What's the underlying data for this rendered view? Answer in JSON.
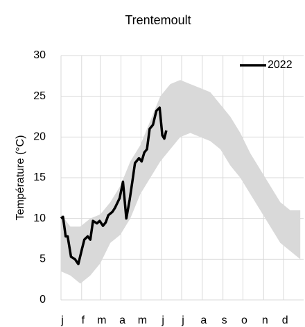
{
  "chart_data": {
    "type": "line",
    "title": "Trentemoult",
    "y_label": "Température (°C)",
    "xlim": [
      1,
      365
    ],
    "xticks": [
      {
        "value": 1,
        "label": "j"
      },
      {
        "value": 32,
        "label": "f"
      },
      {
        "value": 60,
        "label": "m"
      },
      {
        "value": 91,
        "label": "a"
      },
      {
        "value": 121,
        "label": "m"
      },
      {
        "value": 152,
        "label": "j"
      },
      {
        "value": 182,
        "label": "j"
      },
      {
        "value": 213,
        "label": "a"
      },
      {
        "value": 244,
        "label": "s"
      },
      {
        "value": 274,
        "label": "o"
      },
      {
        "value": 305,
        "label": "n"
      },
      {
        "value": 335,
        "label": "d"
      }
    ],
    "ylim": [
      0,
      30
    ],
    "yticks": [
      0,
      5,
      10,
      15,
      20,
      25,
      30
    ],
    "grid": true,
    "legend": "top-right",
    "band": {
      "color": "#d9d9d9",
      "x": [
        1,
        15,
        30,
        45,
        60,
        75,
        90,
        105,
        120,
        135,
        150,
        165,
        180,
        195,
        210,
        225,
        240,
        255,
        270,
        285,
        300,
        315,
        330,
        345,
        360
      ],
      "high": [
        10.5,
        9,
        9,
        10,
        10.5,
        12,
        14,
        17,
        19,
        22,
        25,
        26.5,
        27,
        26.5,
        26,
        25.5,
        24,
        22.5,
        20.5,
        18,
        16,
        14,
        12,
        11,
        11
      ],
      "low": [
        3.5,
        3,
        2,
        3,
        4.5,
        7,
        8,
        10,
        13,
        15,
        17,
        18.5,
        20,
        20.5,
        20,
        19.5,
        18.5,
        16.5,
        15,
        13,
        11,
        9,
        7,
        6,
        5
      ]
    },
    "series": [
      {
        "name": "2022",
        "color": "#000000",
        "x": [
          1,
          4,
          8,
          11,
          16,
          22,
          27,
          32,
          36,
          41,
          45,
          49,
          55,
          59,
          64,
          68,
          72,
          78,
          82,
          89,
          94,
          99,
          104,
          108,
          112,
          118,
          122,
          126,
          130,
          134,
          139,
          144,
          149,
          153,
          156,
          159
        ],
        "values": [
          10,
          10.2,
          7.8,
          7.8,
          5.3,
          5,
          4.4,
          6.1,
          7.4,
          7.8,
          7.4,
          9.7,
          9.4,
          9.7,
          9.1,
          9.5,
          10.4,
          10.8,
          11.3,
          12.5,
          14.5,
          10,
          12.3,
          14.5,
          16.8,
          17.4,
          17,
          18.1,
          18.5,
          21,
          21.5,
          23.2,
          23.6,
          20.2,
          19.8,
          20.8
        ]
      }
    ]
  }
}
